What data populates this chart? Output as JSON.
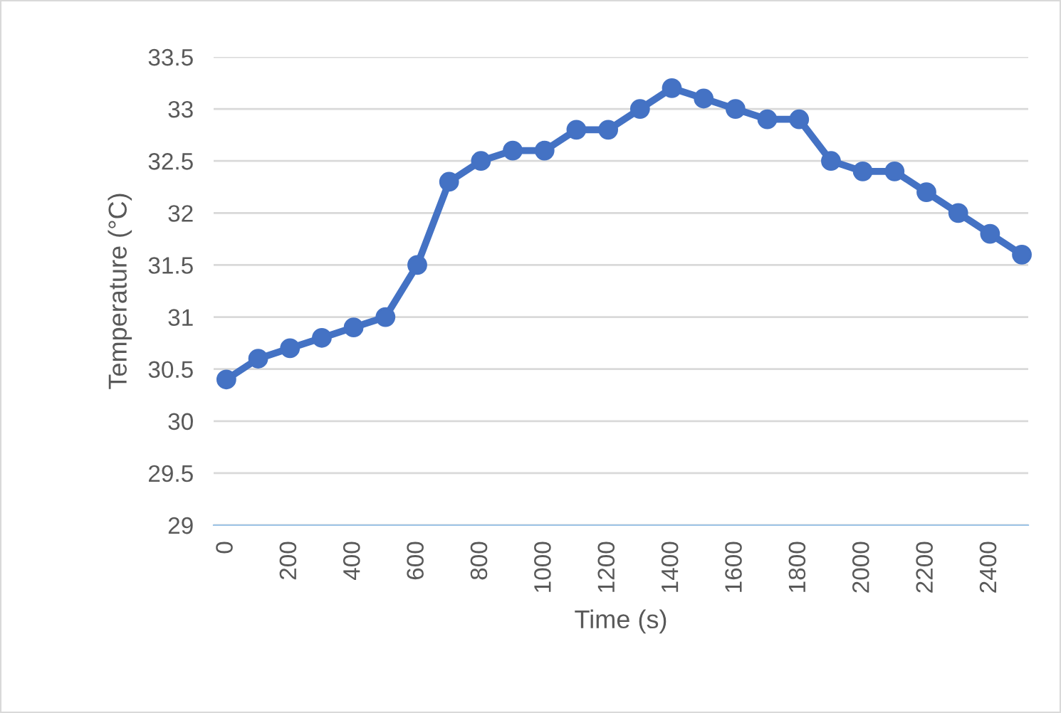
{
  "chart_data": {
    "type": "line",
    "xlabel": "Time (s)",
    "ylabel": "Temperature (°C)",
    "categories": [
      "0",
      null,
      "200",
      null,
      "400",
      null,
      "600",
      null,
      "800",
      null,
      "1000",
      null,
      "1200",
      null,
      "1400",
      null,
      "1600",
      null,
      "1800",
      null,
      "2000",
      null,
      "2200",
      null,
      "2400",
      null
    ],
    "series": [
      {
        "color": "#4472c4",
        "values": [
          30.4,
          30.6,
          30.7,
          30.8,
          30.9,
          31.0,
          31.5,
          32.3,
          32.5,
          32.6,
          32.6,
          32.8,
          32.8,
          33.0,
          33.2,
          33.1,
          33.0,
          32.9,
          32.9,
          32.5,
          32.4,
          32.4,
          32.2,
          32.0,
          31.8,
          31.6
        ]
      }
    ],
    "ylim": [
      29,
      33.5
    ],
    "yticks": [
      29,
      29.5,
      30,
      30.5,
      31,
      31.5,
      32,
      32.5,
      33,
      33.5
    ],
    "grid": "y",
    "marker": "circle",
    "line_style": "solid"
  }
}
